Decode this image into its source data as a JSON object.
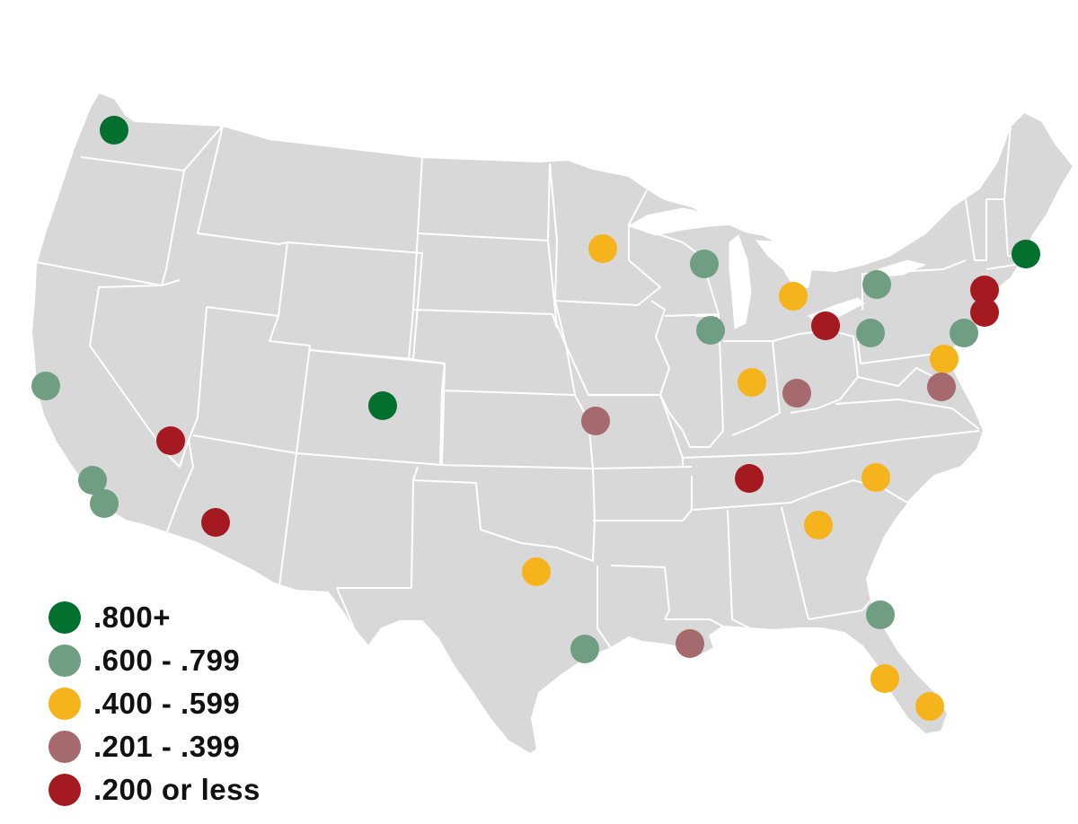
{
  "legend": [
    {
      "label": ".800+",
      "color": "#03702f",
      "key": "a"
    },
    {
      "label": ".600 - .799",
      "color": "#6f9e83",
      "key": "b"
    },
    {
      "label": ".400 - .599",
      "color": "#f5b31c",
      "key": "c"
    },
    {
      "label": ".201 - .399",
      "color": "#a46a6e",
      "key": "d"
    },
    {
      "label": ".200 or less",
      "color": "#a51a20",
      "key": "e"
    }
  ],
  "markers": [
    {
      "category": "a"
    },
    {
      "category": "a"
    },
    {
      "category": "a"
    },
    {
      "category": "b"
    },
    {
      "category": "b"
    },
    {
      "category": "b"
    },
    {
      "category": "b"
    },
    {
      "category": "b"
    },
    {
      "category": "b"
    },
    {
      "category": "b"
    },
    {
      "category": "b"
    },
    {
      "category": "b"
    },
    {
      "category": "b"
    },
    {
      "category": "c"
    },
    {
      "category": "c"
    },
    {
      "category": "c"
    },
    {
      "category": "c"
    },
    {
      "category": "c"
    },
    {
      "category": "c"
    },
    {
      "category": "c"
    },
    {
      "category": "c"
    },
    {
      "category": "c"
    },
    {
      "category": "d"
    },
    {
      "category": "d"
    },
    {
      "category": "d"
    },
    {
      "category": "d"
    },
    {
      "category": "e"
    },
    {
      "category": "e"
    },
    {
      "category": "e"
    },
    {
      "category": "e"
    },
    {
      "category": "e"
    },
    {
      "category": "e"
    }
  ]
}
